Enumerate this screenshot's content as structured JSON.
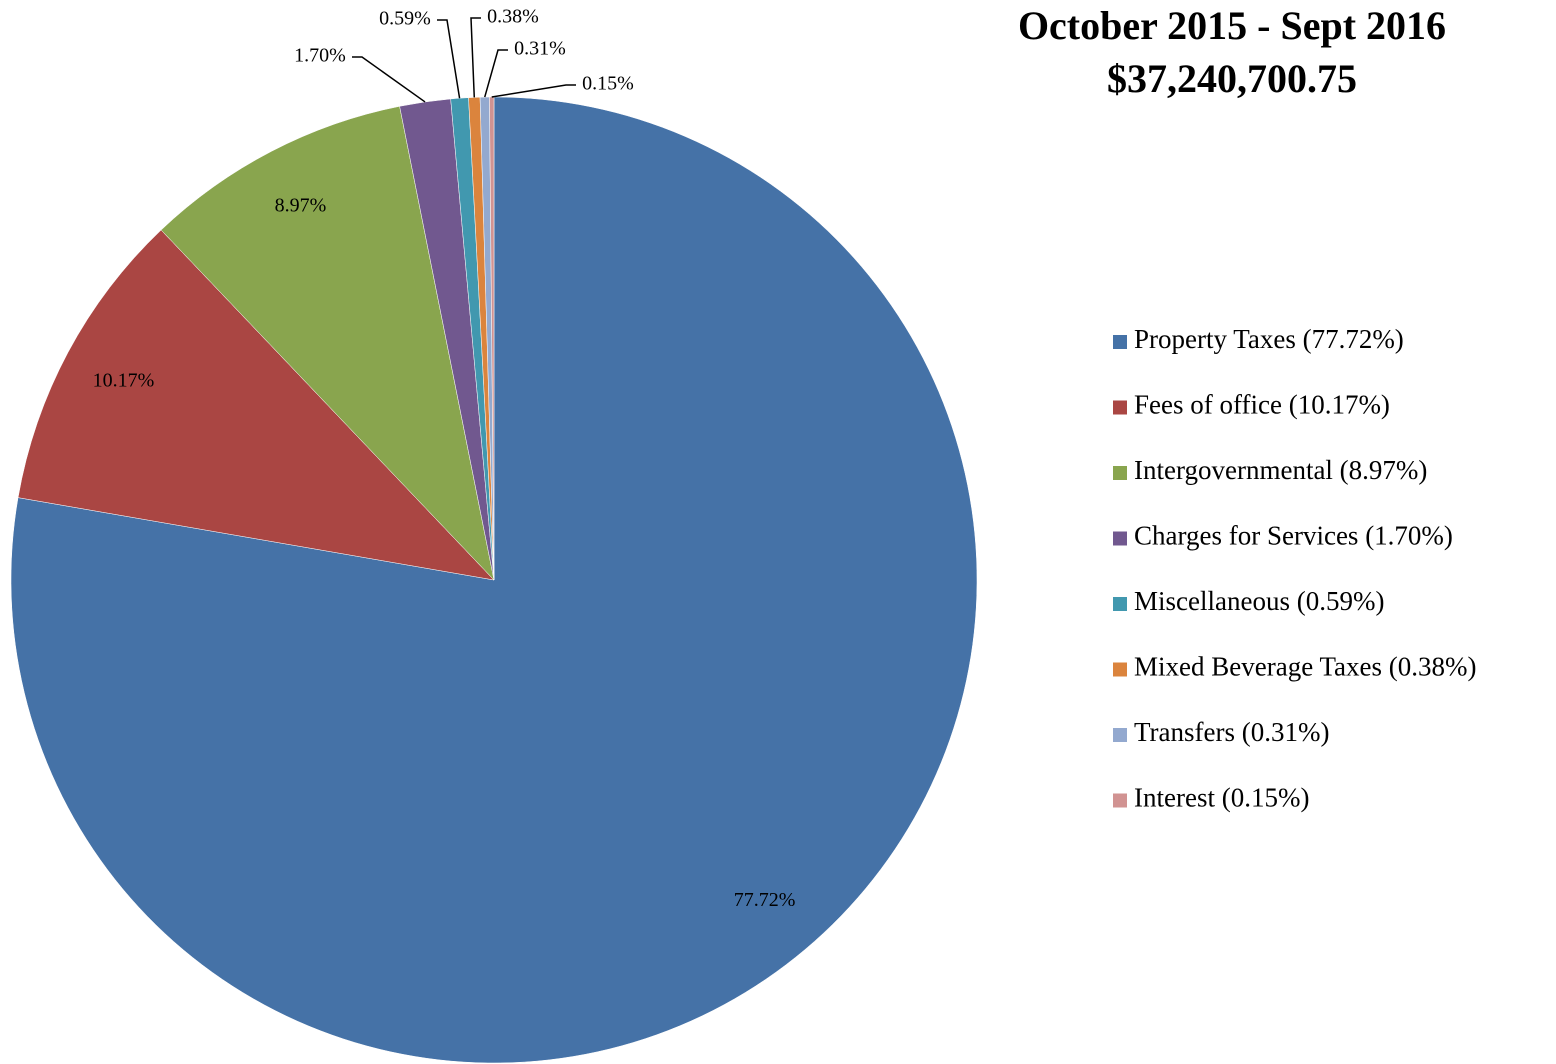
{
  "chart_data": {
    "type": "pie",
    "title": "October 2015 - Sept 2016",
    "subtitle": "$37,240,700.75",
    "categories": [
      "Property Taxes (77.72%)",
      "Fees of office (10.17%)",
      "Intergovernmental (8.97%)",
      "Charges for Services (1.70%)",
      "Miscellaneous (0.59%)",
      "Mixed Beverage Taxes (0.38%)",
      "Transfers (0.31%)",
      "Interest (0.15%)"
    ],
    "values": [
      77.72,
      10.17,
      8.97,
      1.7,
      0.59,
      0.38,
      0.31,
      0.15
    ],
    "value_labels": [
      "77.72%",
      "10.17%",
      "8.97%",
      "1.70%",
      "0.59%",
      "0.38%",
      "0.31%",
      "0.15%"
    ],
    "colors": [
      "#4572a7",
      "#aa4643",
      "#89a54e",
      "#71588f",
      "#4198af",
      "#db843d",
      "#93a9cf",
      "#d19392"
    ],
    "legend": "right"
  }
}
